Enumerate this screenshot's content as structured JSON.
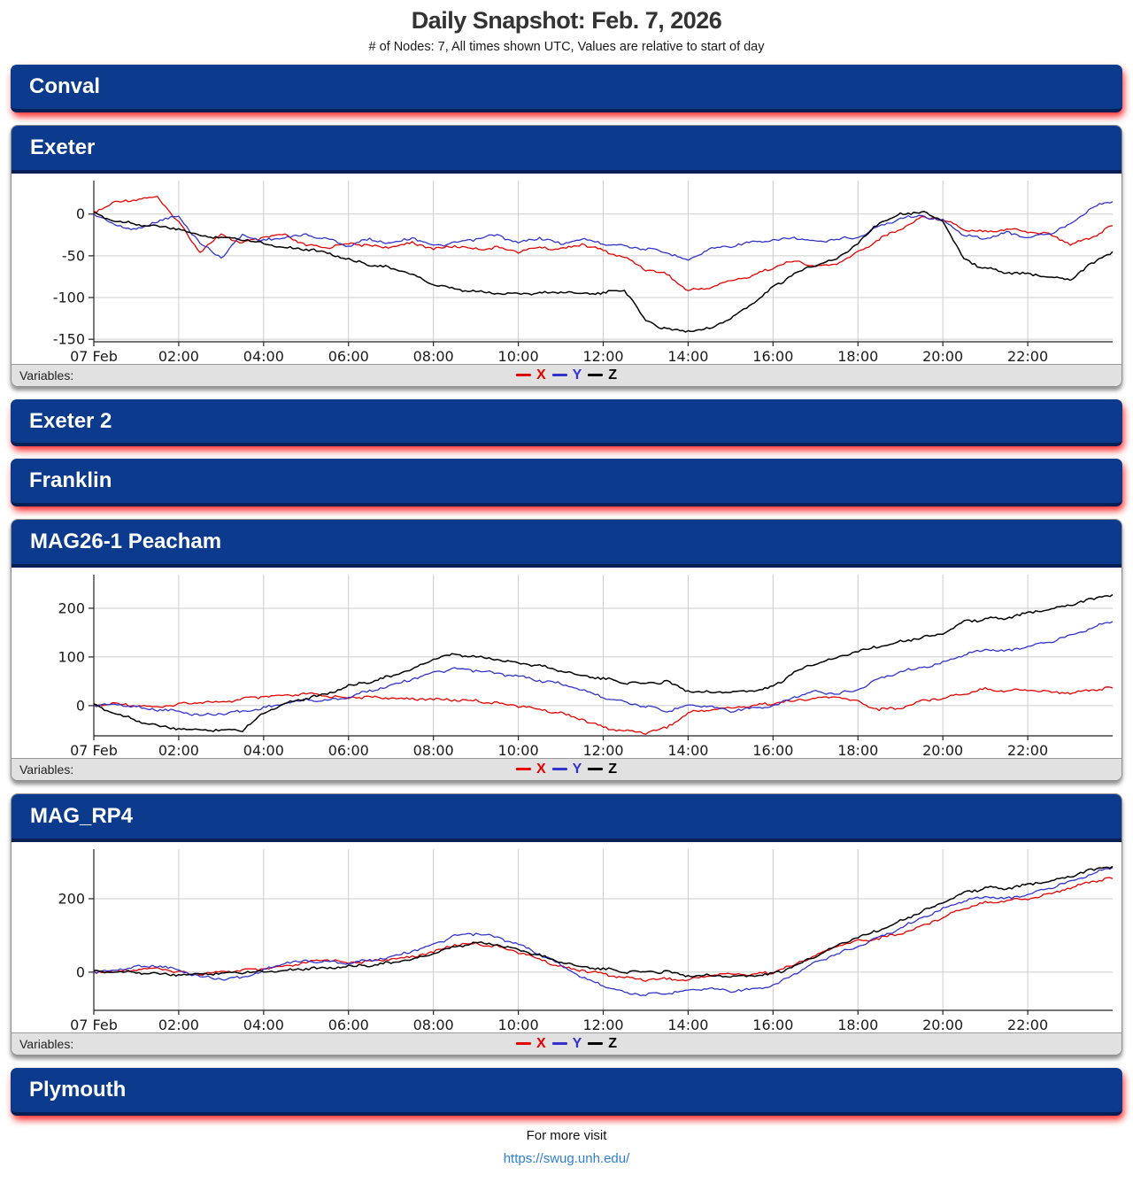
{
  "page": {
    "title": "Daily Snapshot: Feb. 7, 2026",
    "subtitle": "# of Nodes: 7, All times shown UTC, Values are relative to start of day",
    "footer_text": "For more visit",
    "footer_link": "https://swug.unh.edu/"
  },
  "colors": {
    "header_bg": "#0c3a8d",
    "header_edge": "#081f55",
    "red_glow": "#ff1f1f",
    "grid": "#cccccc",
    "axis": "#222222",
    "series_x": "#e60000",
    "series_y": "#3333cc",
    "series_z": "#000000"
  },
  "legend": {
    "label": "Variables:",
    "items": [
      {
        "name": "X",
        "color": "#e60000"
      },
      {
        "name": "Y",
        "color": "#3333cc"
      },
      {
        "name": "Z",
        "color": "#000000"
      }
    ]
  },
  "panels": [
    {
      "title": "Conval",
      "type": "collapsed"
    },
    {
      "title": "Exeter",
      "type": "chart",
      "chart": 0
    },
    {
      "title": "Exeter 2",
      "type": "collapsed"
    },
    {
      "title": "Franklin",
      "type": "collapsed"
    },
    {
      "title": "MAG26-1 Peacham",
      "type": "chart",
      "chart": 1
    },
    {
      "title": "MAG_RP4",
      "type": "chart",
      "chart": 2
    },
    {
      "title": "Plymouth",
      "type": "collapsed"
    }
  ],
  "chart_data": [
    {
      "type": "line",
      "node": "Exeter",
      "x_unit": "hours UTC on 07 Feb",
      "x_step_hours": 0.5,
      "xlim": [
        0,
        24
      ],
      "ylim": [
        -153,
        40
      ],
      "yticks": [
        0,
        -50,
        -100,
        -150
      ],
      "x_tick_hours": [
        0,
        2,
        4,
        6,
        8,
        10,
        12,
        14,
        16,
        18,
        20,
        22
      ],
      "x_tick_labels": [
        "07 Feb",
        "02:00",
        "04:00",
        "06:00",
        "08:00",
        "10:00",
        "12:00",
        "14:00",
        "16:00",
        "18:00",
        "20:00",
        "22:00"
      ],
      "grid": true,
      "legend_position": "bottom",
      "series": [
        {
          "name": "X",
          "color": "#e60000",
          "values": [
            2,
            14,
            18,
            20,
            -10,
            -45,
            -25,
            -35,
            -28,
            -25,
            -38,
            -40,
            -35,
            -38,
            -40,
            -34,
            -42,
            -38,
            -42,
            -40,
            -45,
            -40,
            -42,
            -36,
            -44,
            -52,
            -66,
            -72,
            -92,
            -88,
            -80,
            -74,
            -64,
            -56,
            -63,
            -60,
            -46,
            -30,
            -18,
            -4,
            -6,
            -18,
            -21,
            -18,
            -21,
            -24,
            -36,
            -28,
            -14
          ]
        },
        {
          "name": "Y",
          "color": "#3333cc",
          "values": [
            0,
            -13,
            -19,
            -8,
            -3,
            -35,
            -52,
            -25,
            -32,
            -28,
            -25,
            -30,
            -38,
            -30,
            -35,
            -28,
            -38,
            -35,
            -30,
            -25,
            -35,
            -28,
            -36,
            -30,
            -35,
            -38,
            -42,
            -46,
            -55,
            -42,
            -38,
            -34,
            -32,
            -28,
            -34,
            -30,
            -28,
            -15,
            -5,
            -2,
            -8,
            -25,
            -30,
            -22,
            -28,
            -24,
            -12,
            8,
            15
          ]
        },
        {
          "name": "Z",
          "color": "#000000",
          "values": [
            0,
            -8,
            -12,
            -15,
            -18,
            -26,
            -28,
            -30,
            -35,
            -40,
            -42,
            -46,
            -55,
            -60,
            -65,
            -72,
            -85,
            -90,
            -93,
            -95,
            -95,
            -95,
            -93,
            -95,
            -95,
            -90,
            -128,
            -138,
            -140,
            -137,
            -125,
            -108,
            -88,
            -72,
            -60,
            -54,
            -35,
            -10,
            0,
            3,
            -8,
            -55,
            -65,
            -70,
            -72,
            -75,
            -78,
            -60,
            -45
          ]
        }
      ]
    },
    {
      "type": "line",
      "node": "MAG26-1 Peacham",
      "x_unit": "hours UTC on 07 Feb",
      "x_step_hours": 0.5,
      "xlim": [
        0,
        24
      ],
      "ylim": [
        -62,
        269
      ],
      "yticks": [
        0,
        100,
        200
      ],
      "x_tick_hours": [
        0,
        2,
        4,
        6,
        8,
        10,
        12,
        14,
        16,
        18,
        20,
        22
      ],
      "x_tick_labels": [
        "07 Feb",
        "02:00",
        "04:00",
        "06:00",
        "08:00",
        "10:00",
        "12:00",
        "14:00",
        "16:00",
        "18:00",
        "20:00",
        "22:00"
      ],
      "grid": true,
      "legend_position": "bottom",
      "series": [
        {
          "name": "X",
          "color": "#e60000",
          "values": [
            0,
            4,
            1,
            -4,
            3,
            8,
            6,
            14,
            18,
            20,
            24,
            20,
            16,
            18,
            15,
            14,
            13,
            12,
            10,
            5,
            0,
            -8,
            -15,
            -28,
            -45,
            -52,
            -55,
            -45,
            -15,
            -8,
            -5,
            0,
            5,
            10,
            15,
            18,
            8,
            -8,
            -5,
            10,
            16,
            25,
            35,
            30,
            33,
            28,
            26,
            33,
            36
          ]
        },
        {
          "name": "Y",
          "color": "#3333cc",
          "values": [
            0,
            3,
            -3,
            -8,
            -12,
            -20,
            -16,
            -12,
            -5,
            5,
            12,
            10,
            18,
            30,
            42,
            55,
            68,
            75,
            72,
            66,
            60,
            52,
            45,
            32,
            18,
            8,
            -2,
            -12,
            2,
            -2,
            -10,
            -6,
            -2,
            18,
            28,
            24,
            33,
            55,
            70,
            78,
            88,
            105,
            115,
            112,
            122,
            130,
            145,
            160,
            173
          ]
        },
        {
          "name": "Z",
          "color": "#000000",
          "values": [
            0,
            -15,
            -30,
            -42,
            -48,
            -50,
            -50,
            -50,
            -15,
            5,
            15,
            25,
            40,
            50,
            60,
            75,
            95,
            105,
            100,
            95,
            88,
            82,
            72,
            62,
            55,
            48,
            45,
            50,
            30,
            28,
            28,
            30,
            38,
            68,
            88,
            98,
            112,
            122,
            132,
            140,
            148,
            172,
            178,
            180,
            190,
            198,
            208,
            218,
            228
          ]
        }
      ]
    },
    {
      "type": "line",
      "node": "MAG_RP4",
      "x_unit": "hours UTC on 07 Feb",
      "x_step_hours": 0.5,
      "xlim": [
        0,
        24
      ],
      "ylim": [
        -104,
        335
      ],
      "yticks": [
        0,
        200
      ],
      "x_tick_hours": [
        0,
        2,
        4,
        6,
        8,
        10,
        12,
        14,
        16,
        18,
        20,
        22
      ],
      "x_tick_labels": [
        "07 Feb",
        "02:00",
        "04:00",
        "06:00",
        "08:00",
        "10:00",
        "12:00",
        "14:00",
        "16:00",
        "18:00",
        "20:00",
        "22:00"
      ],
      "grid": true,
      "legend_position": "bottom",
      "series": [
        {
          "name": "X",
          "color": "#e60000",
          "values": [
            0,
            2,
            8,
            10,
            0,
            -5,
            0,
            5,
            8,
            15,
            25,
            35,
            25,
            30,
            35,
            42,
            55,
            75,
            78,
            70,
            55,
            35,
            15,
            5,
            -5,
            -15,
            -20,
            -18,
            -22,
            -8,
            -5,
            -6,
            0,
            20,
            45,
            70,
            85,
            92,
            105,
            125,
            150,
            175,
            190,
            195,
            200,
            212,
            230,
            248,
            255
          ]
        },
        {
          "name": "Y",
          "color": "#3333cc",
          "values": [
            0,
            5,
            15,
            18,
            5,
            -12,
            -18,
            -15,
            5,
            25,
            30,
            28,
            25,
            32,
            42,
            58,
            75,
            98,
            105,
            95,
            75,
            50,
            20,
            -15,
            -35,
            -55,
            -62,
            -58,
            -48,
            -45,
            -50,
            -48,
            -38,
            -5,
            25,
            50,
            70,
            95,
            120,
            148,
            172,
            195,
            205,
            200,
            212,
            228,
            248,
            268,
            285
          ]
        },
        {
          "name": "Z",
          "color": "#000000",
          "values": [
            0,
            2,
            0,
            -5,
            -8,
            -5,
            -3,
            0,
            2,
            5,
            10,
            12,
            15,
            20,
            25,
            35,
            50,
            68,
            80,
            75,
            62,
            45,
            28,
            15,
            8,
            2,
            0,
            2,
            -10,
            -8,
            -12,
            -10,
            -5,
            15,
            45,
            72,
            95,
            115,
            140,
            165,
            190,
            215,
            230,
            228,
            238,
            248,
            262,
            278,
            288
          ]
        }
      ]
    }
  ]
}
